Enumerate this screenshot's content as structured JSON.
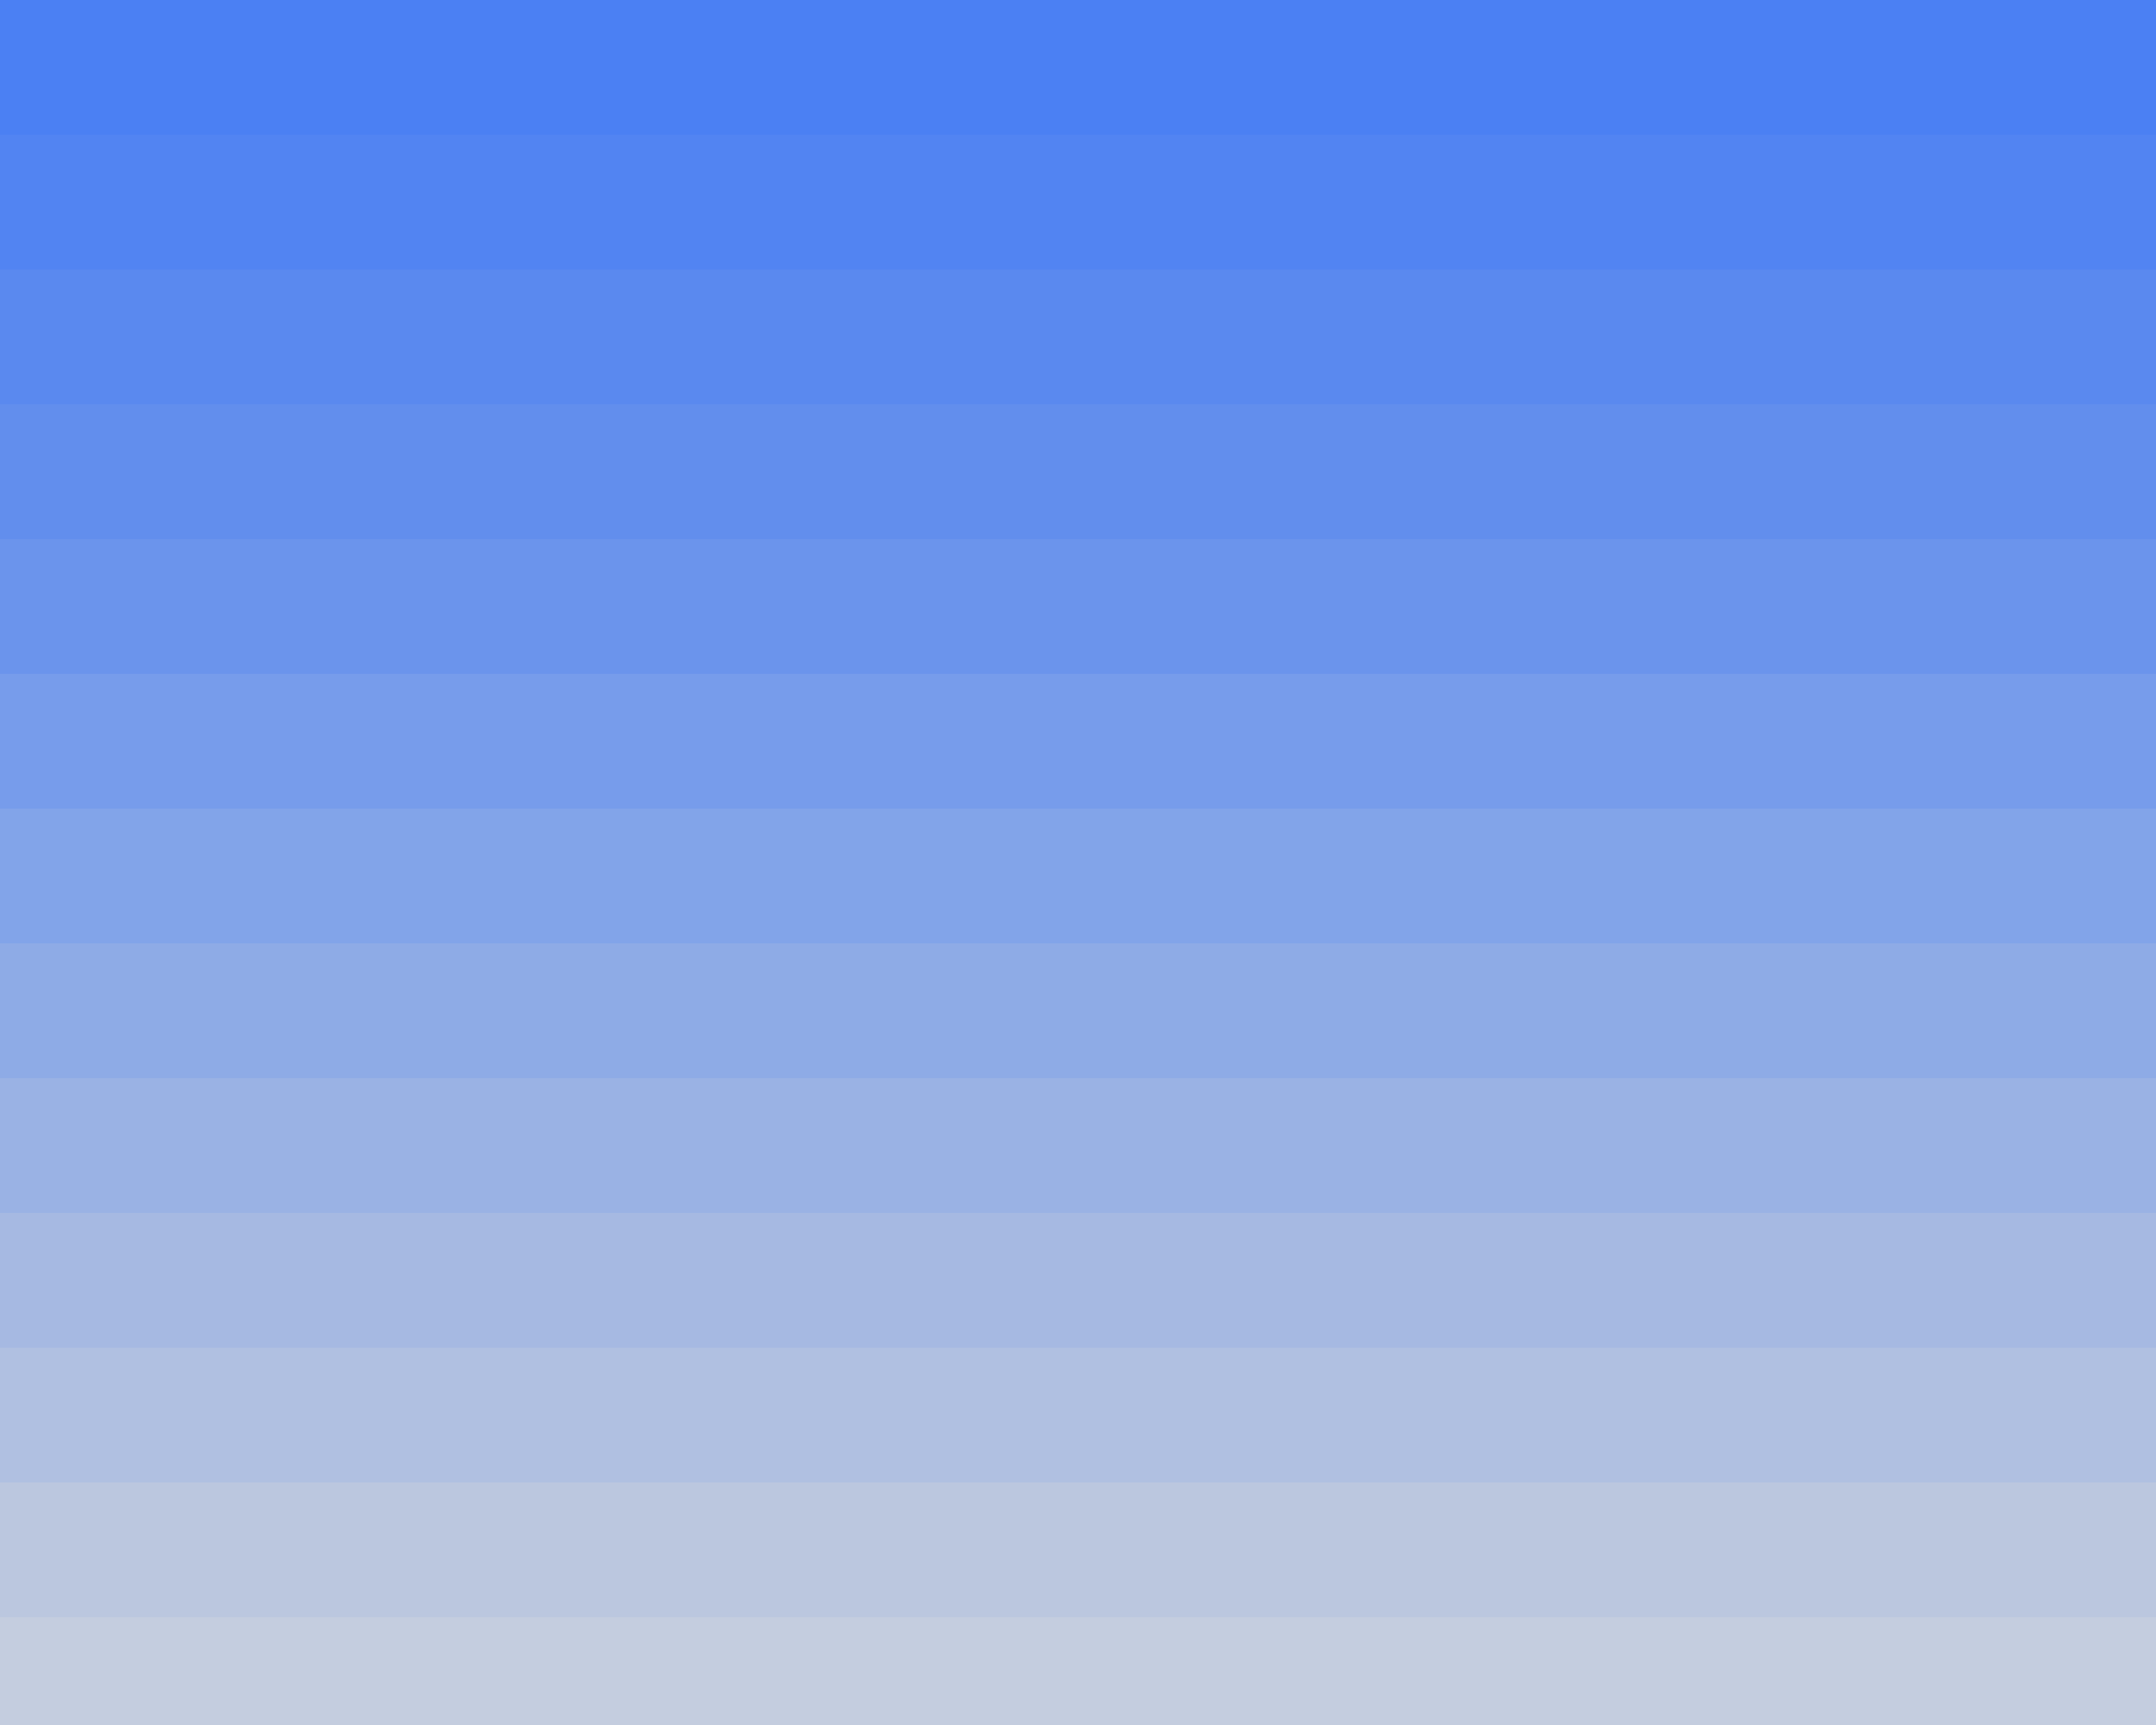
{
  "background": {
    "bands": [
      {
        "color": "#4b80f3"
      },
      {
        "color": "#5284f2"
      },
      {
        "color": "#5a89ef"
      },
      {
        "color": "#628eed"
      },
      {
        "color": "#6b94ec"
      },
      {
        "color": "#779ceb"
      },
      {
        "color": "#82a4e9"
      },
      {
        "color": "#8eabe6"
      },
      {
        "color": "#9ab2e4"
      },
      {
        "color": "#a6b9e2"
      },
      {
        "color": "#b0c0e1"
      },
      {
        "color": "#bbc7df"
      },
      {
        "color": "#c4cddf"
      }
    ]
  }
}
